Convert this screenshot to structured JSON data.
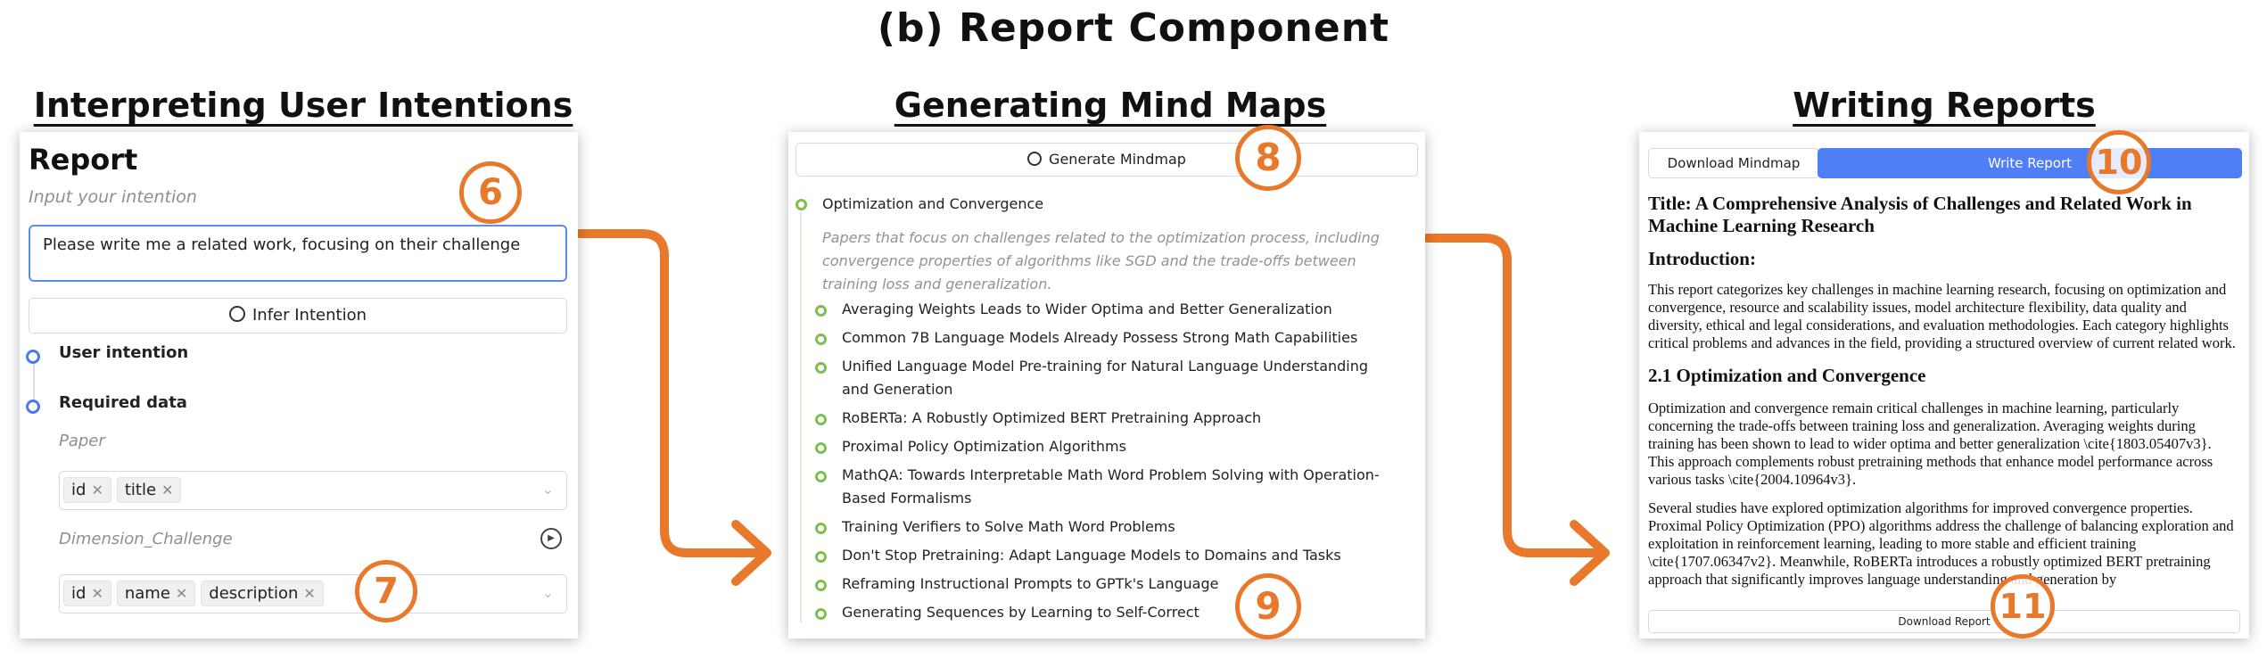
{
  "main_title": "(b) Report Component",
  "sections": {
    "interpreting": "Interpreting User Intentions",
    "mindmaps": "Generating Mind Maps",
    "writing": "Writing Reports"
  },
  "panel1": {
    "title": "Report",
    "intention_placeholder": "Input your intention",
    "intention_value": "Please write me a related work, focusing on their challenge",
    "infer_button": "Infer Intention",
    "timeline": [
      "User intention",
      "Required data"
    ],
    "paper_label": "Paper",
    "paper_tags": [
      "id",
      "title"
    ],
    "dimension_label": "Dimension_Challenge",
    "dimension_tags": [
      "id",
      "name",
      "description"
    ]
  },
  "panel2": {
    "generate_button": "Generate Mindmap",
    "root": "Optimization and Convergence",
    "description": "Papers that focus on challenges related to the optimization process, including convergence properties of algorithms like SGD and the trade-offs between training loss and generalization.",
    "items": [
      "Averaging Weights Leads to Wider Optima and Better Generalization",
      "Common 7B Language Models Already Possess Strong Math Capabilities",
      "Unified Language Model Pre-training for Natural Language Understanding and Generation",
      "RoBERTa: A Robustly Optimized BERT Pretraining Approach",
      "Proximal Policy Optimization Algorithms",
      "MathQA: Towards Interpretable Math Word Problem Solving with Operation-Based Formalisms",
      "Training Verifiers to Solve Math Word Problems",
      "Don't Stop Pretraining: Adapt Language Models to Domains and Tasks",
      "Reframing Instructional Prompts to GPTk's Language",
      "Generating Sequences by Learning to Self-Correct"
    ]
  },
  "panel3": {
    "download_mindmap": "Download Mindmap",
    "write_report": "Write Report",
    "report_title": "Title: A Comprehensive Analysis of Challenges and Related Work in Machine Learning Research",
    "intro_heading": "Introduction:",
    "intro_text": "This report categorizes key challenges in machine learning research, focusing on optimization and convergence, resource and scalability issues, model architecture flexibility, data quality and diversity, ethical and legal considerations, and evaluation methodologies. Each category highlights critical problems and advances in the field, providing a structured overview of current related work.",
    "section_heading": "2.1 Optimization and Convergence",
    "para1": "Optimization and convergence remain critical challenges in machine learning, particularly concerning the trade-offs between training loss and generalization. Averaging weights during training has been shown to lead to wider optima and better generalization \\cite{1803.05407v3}. This approach complements robust pretraining methods that enhance model performance across various tasks \\cite{2004.10964v3}.",
    "para2": "Several studies have explored optimization algorithms for improved convergence properties. Proximal Policy Optimization (PPO) algorithms address the challenge of balancing exploration and exploitation in reinforcement learning, leading to more stable and efficient training \\cite{1707.06347v2}. Meanwhile, RoBERTa introduces a robustly optimized BERT pretraining approach that significantly improves language understanding and generation by",
    "download_report": "Download Report"
  },
  "markers": [
    "6",
    "7",
    "8",
    "9",
    "10",
    "11"
  ],
  "colors": {
    "accent_orange": "#e8782a",
    "primary_blue": "#4f7ef5",
    "tree_green": "#7fc04d"
  }
}
